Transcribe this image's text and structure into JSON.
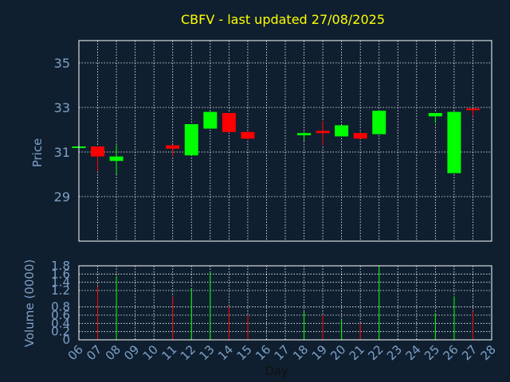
{
  "chart_data": {
    "title": "CBFV - last updated 27/08/2025",
    "type": "candlestick",
    "xlabel": "Day",
    "price_panel": {
      "ylabel": "Price",
      "ylim": [
        27.0,
        36.0
      ],
      "yticks": [
        29,
        31,
        33,
        35
      ]
    },
    "volume_panel": {
      "ylabel": "Volume (0000)",
      "ylim": [
        0,
        1.8
      ],
      "yticks": [
        0,
        0.2,
        0.4,
        0.6,
        0.8,
        1.2,
        1.4,
        1.6,
        1.8
      ],
      "ytick_labels": [
        "0",
        "0.2",
        "0.4",
        "0.6",
        "0.8",
        "1.2",
        "1.4",
        "1.6",
        "1.8"
      ]
    },
    "xticks": [
      "06",
      "07",
      "08",
      "09",
      "10",
      "11",
      "12",
      "13",
      "14",
      "15",
      "16",
      "17",
      "18",
      "19",
      "20",
      "21",
      "22",
      "23",
      "24",
      "25",
      "26",
      "27",
      "28"
    ],
    "grid": true,
    "colors": {
      "up": "#00ff00",
      "down": "#ff0000",
      "title": "#ffff00",
      "axis_text": "#7ea0c8",
      "background": "#0f1f2f"
    },
    "candles": [
      {
        "day": "06",
        "open": 31.25,
        "close": 31.25,
        "high": 31.25,
        "low": 31.25,
        "volume": 0
      },
      {
        "day": "07",
        "open": 31.25,
        "close": 30.8,
        "high": 31.25,
        "low": 30.15,
        "volume": 1.3
      },
      {
        "day": "08",
        "open": 30.6,
        "close": 30.8,
        "high": 31.3,
        "low": 30.0,
        "volume": 1.55
      },
      {
        "day": "11",
        "open": 31.3,
        "close": 31.15,
        "high": 31.3,
        "low": 30.8,
        "volume": 1.05
      },
      {
        "day": "12",
        "open": 30.85,
        "close": 32.25,
        "high": 32.25,
        "low": 30.85,
        "volume": 1.25
      },
      {
        "day": "13",
        "open": 32.05,
        "close": 32.8,
        "high": 32.8,
        "low": 32.05,
        "volume": 1.65
      },
      {
        "day": "14",
        "open": 32.75,
        "close": 31.9,
        "high": 32.75,
        "low": 31.85,
        "volume": 0.8
      },
      {
        "day": "15",
        "open": 31.9,
        "close": 31.6,
        "high": 31.9,
        "low": 31.55,
        "volume": 0.6
      },
      {
        "day": "18",
        "open": 31.75,
        "close": 31.85,
        "high": 31.9,
        "low": 31.5,
        "volume": 0.7
      },
      {
        "day": "19",
        "open": 31.95,
        "close": 31.85,
        "high": 32.4,
        "low": 31.3,
        "volume": 0.6
      },
      {
        "day": "20",
        "open": 31.7,
        "close": 32.2,
        "high": 32.2,
        "low": 31.7,
        "volume": 0.5
      },
      {
        "day": "21",
        "open": 31.85,
        "close": 31.6,
        "high": 31.85,
        "low": 31.6,
        "volume": 0.4
      },
      {
        "day": "22",
        "open": 31.8,
        "close": 32.85,
        "high": 32.85,
        "low": 31.8,
        "volume": 1.8
      },
      {
        "day": "25",
        "open": 32.6,
        "close": 32.75,
        "high": 32.75,
        "low": 32.3,
        "volume": 0.65
      },
      {
        "day": "26",
        "open": 30.05,
        "close": 32.8,
        "high": 32.8,
        "low": 30.05,
        "volume": 1.05
      },
      {
        "day": "27",
        "open": 32.95,
        "close": 32.9,
        "high": 32.95,
        "low": 32.6,
        "volume": 0.7
      }
    ]
  }
}
